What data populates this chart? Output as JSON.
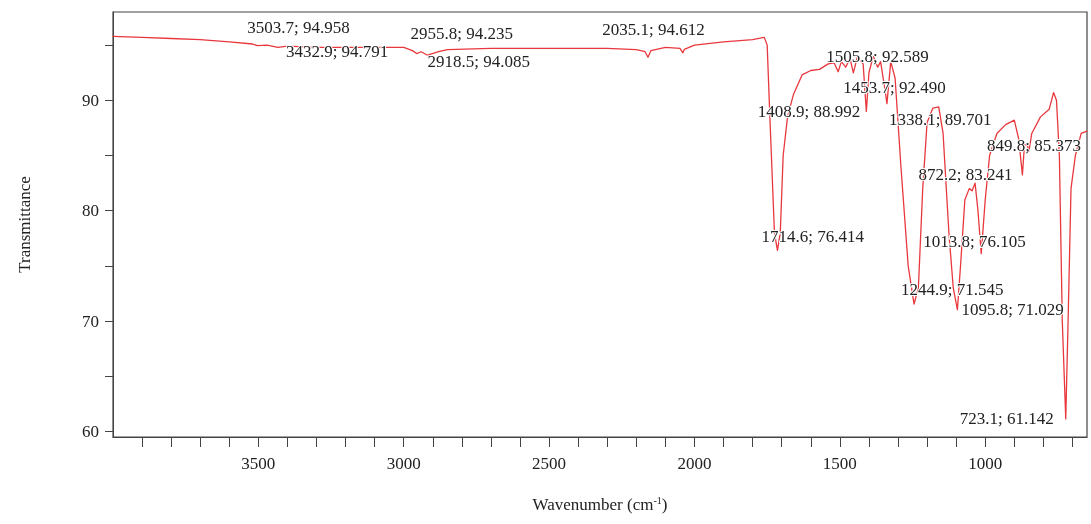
{
  "chart_data": {
    "type": "line",
    "xlabel": "Wavenumber (cm$^{-1}$)",
    "ylabel": "Transmittance",
    "xlim": [
      4000,
      650
    ],
    "ylim": [
      59.5,
      98
    ],
    "xticks": [
      {
        "value": 700,
        "label": null
      },
      {
        "value": 800,
        "label": null
      },
      {
        "value": 900,
        "label": null
      },
      1000,
      {
        "value": 1100,
        "label": null
      },
      {
        "value": 1200,
        "label": null
      },
      {
        "value": 1300,
        "label": null
      },
      {
        "value": 1400,
        "label": null
      },
      1500,
      {
        "value": 1600,
        "label": null
      },
      {
        "value": 1700,
        "label": null
      },
      {
        "value": 1800,
        "label": null
      },
      {
        "value": 1900,
        "label": null
      },
      2000,
      {
        "value": 2100,
        "label": null
      },
      {
        "value": 2200,
        "label": null
      },
      {
        "value": 2300,
        "label": null
      },
      {
        "value": 2400,
        "label": null
      },
      2500,
      {
        "value": 2600,
        "label": null
      },
      {
        "value": 2700,
        "label": null
      },
      {
        "value": 2800,
        "label": null
      },
      {
        "value": 2900,
        "label": null
      },
      3000,
      {
        "value": 3100,
        "label": null
      },
      {
        "value": 3200,
        "label": null
      },
      {
        "value": 3300,
        "label": null
      },
      {
        "value": 3400,
        "label": null
      },
      3500,
      {
        "value": 3600,
        "label": null
      },
      {
        "value": 3700,
        "label": null
      },
      {
        "value": 3800,
        "label": null
      },
      {
        "value": 3900,
        "label": null
      }
    ],
    "yticks": [
      60,
      {
        "value": 65,
        "label": null
      },
      70,
      {
        "value": 75,
        "label": null
      },
      80,
      {
        "value": 85,
        "label": null
      },
      90,
      {
        "value": 95,
        "label": null
      }
    ],
    "grid": false,
    "marker": "none",
    "line_style": "solid",
    "series": [
      {
        "color": "#e8383d",
        "x": [
          4000,
          3900,
          3800,
          3700,
          3600,
          3520,
          3503.7,
          3470,
          3432.9,
          3400,
          3300,
          3200,
          3100,
          3000,
          2970,
          2955.8,
          2940,
          2918.5,
          2880,
          2850,
          2700,
          2500,
          2300,
          2200,
          2170,
          2160,
          2150,
          2100,
          2050,
          2040,
          2035.1,
          2000,
          1900,
          1800,
          1760,
          1750,
          1740,
          1725,
          1714.6,
          1705,
          1695,
          1680,
          1660,
          1630,
          1600,
          1570,
          1540,
          1520,
          1505.8,
          1495,
          1480,
          1465,
          1453.7,
          1440,
          1420,
          1408.9,
          1400,
          1385,
          1370,
          1360,
          1345,
          1338.1,
          1325,
          1310,
          1290,
          1265,
          1244.9,
          1230,
          1215,
          1200,
          1180,
          1160,
          1145,
          1125,
          1110,
          1095.8,
          1085,
          1070,
          1055,
          1045,
          1035,
          1025,
          1013.8,
          1000,
          985,
          960,
          930,
          900,
          885,
          872.2,
          865,
          855,
          849.8,
          840,
          810,
          780,
          765,
          755,
          745,
          735,
          723.1,
          715,
          705,
          690,
          670,
          650
        ],
        "values": [
          95.8,
          95.7,
          95.6,
          95.5,
          95.3,
          95.1,
          94.958,
          95.0,
          94.791,
          94.9,
          94.8,
          94.8,
          94.8,
          94.8,
          94.5,
          94.235,
          94.4,
          94.085,
          94.4,
          94.6,
          94.7,
          94.7,
          94.7,
          94.6,
          94.4,
          93.9,
          94.5,
          94.8,
          94.7,
          94.3,
          94.612,
          95.0,
          95.3,
          95.5,
          95.7,
          95.0,
          88,
          78,
          76.414,
          78,
          85,
          88.5,
          90.5,
          92.3,
          92.7,
          92.8,
          93.3,
          93.4,
          92.589,
          93.5,
          93.0,
          93.8,
          92.49,
          93.9,
          93.3,
          88.992,
          92.5,
          94.0,
          93.0,
          93.5,
          91.0,
          89.701,
          93.5,
          92,
          84,
          75,
          71.545,
          73,
          82,
          88,
          89.3,
          89.4,
          87,
          78,
          73,
          71.029,
          75,
          81,
          82.0,
          81.8,
          82.5,
          80,
          76.105,
          81,
          85,
          87,
          87.8,
          88.2,
          86.5,
          83.241,
          86,
          85.9,
          85.373,
          87,
          88.5,
          89.2,
          90.7,
          90,
          85,
          70,
          61.142,
          70,
          82,
          85,
          87,
          87.2
        ]
      }
    ],
    "annotations": [
      {
        "text": "3503.7; 94.958",
        "x": 3503.7,
        "y": 94.958
      },
      {
        "text": "3432.9; 94.791",
        "x": 3432.9,
        "y": 94.791
      },
      {
        "text": "2955.8; 94.235",
        "x": 2955.8,
        "y": 94.235
      },
      {
        "text": "2918.5; 94.085",
        "x": 2918.5,
        "y": 94.085
      },
      {
        "text": "2035.1; 94.612",
        "x": 2035.1,
        "y": 94.612
      },
      {
        "text": "1505.8; 92.589",
        "x": 1505.8,
        "y": 92.589
      },
      {
        "text": "1453.7; 92.490",
        "x": 1453.7,
        "y": 92.49
      },
      {
        "text": "1408.9; 88.992",
        "x": 1408.9,
        "y": 88.992
      },
      {
        "text": "1338.1; 89.701",
        "x": 1338.1,
        "y": 89.701
      },
      {
        "text": "849.8; 85.373",
        "x": 849.8,
        "y": 85.373
      },
      {
        "text": "872.2; 83.241",
        "x": 872.2,
        "y": 83.241
      },
      {
        "text": "1714.6; 76.414",
        "x": 1714.6,
        "y": 76.414
      },
      {
        "text": "1013.8; 76.105",
        "x": 1013.8,
        "y": 76.105
      },
      {
        "text": "1244.9; 71.545",
        "x": 1244.9,
        "y": 71.545
      },
      {
        "text": "1095.8; 71.029",
        "x": 1095.8,
        "y": 71.029
      },
      {
        "text": "723.1; 61.142",
        "x": 723.1,
        "y": 61.142
      }
    ]
  }
}
